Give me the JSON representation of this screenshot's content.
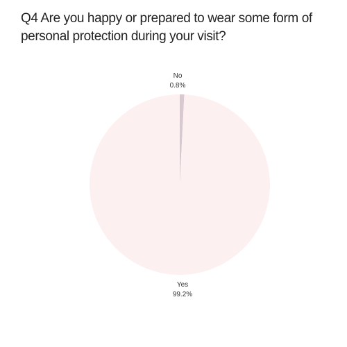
{
  "title": "Q4 Are you happy or prepared to wear some form of personal protection during your visit?",
  "chart_data": {
    "type": "pie",
    "title": "Q4 Are you happy or prepared to wear some form of personal protection during your visit?",
    "categories": [
      "Yes",
      "No"
    ],
    "values": [
      99.2,
      0.8
    ],
    "labels": [
      "99.2%",
      "0.8%"
    ],
    "colors": [
      "#fdf0f1",
      "#d8c8d0"
    ]
  }
}
